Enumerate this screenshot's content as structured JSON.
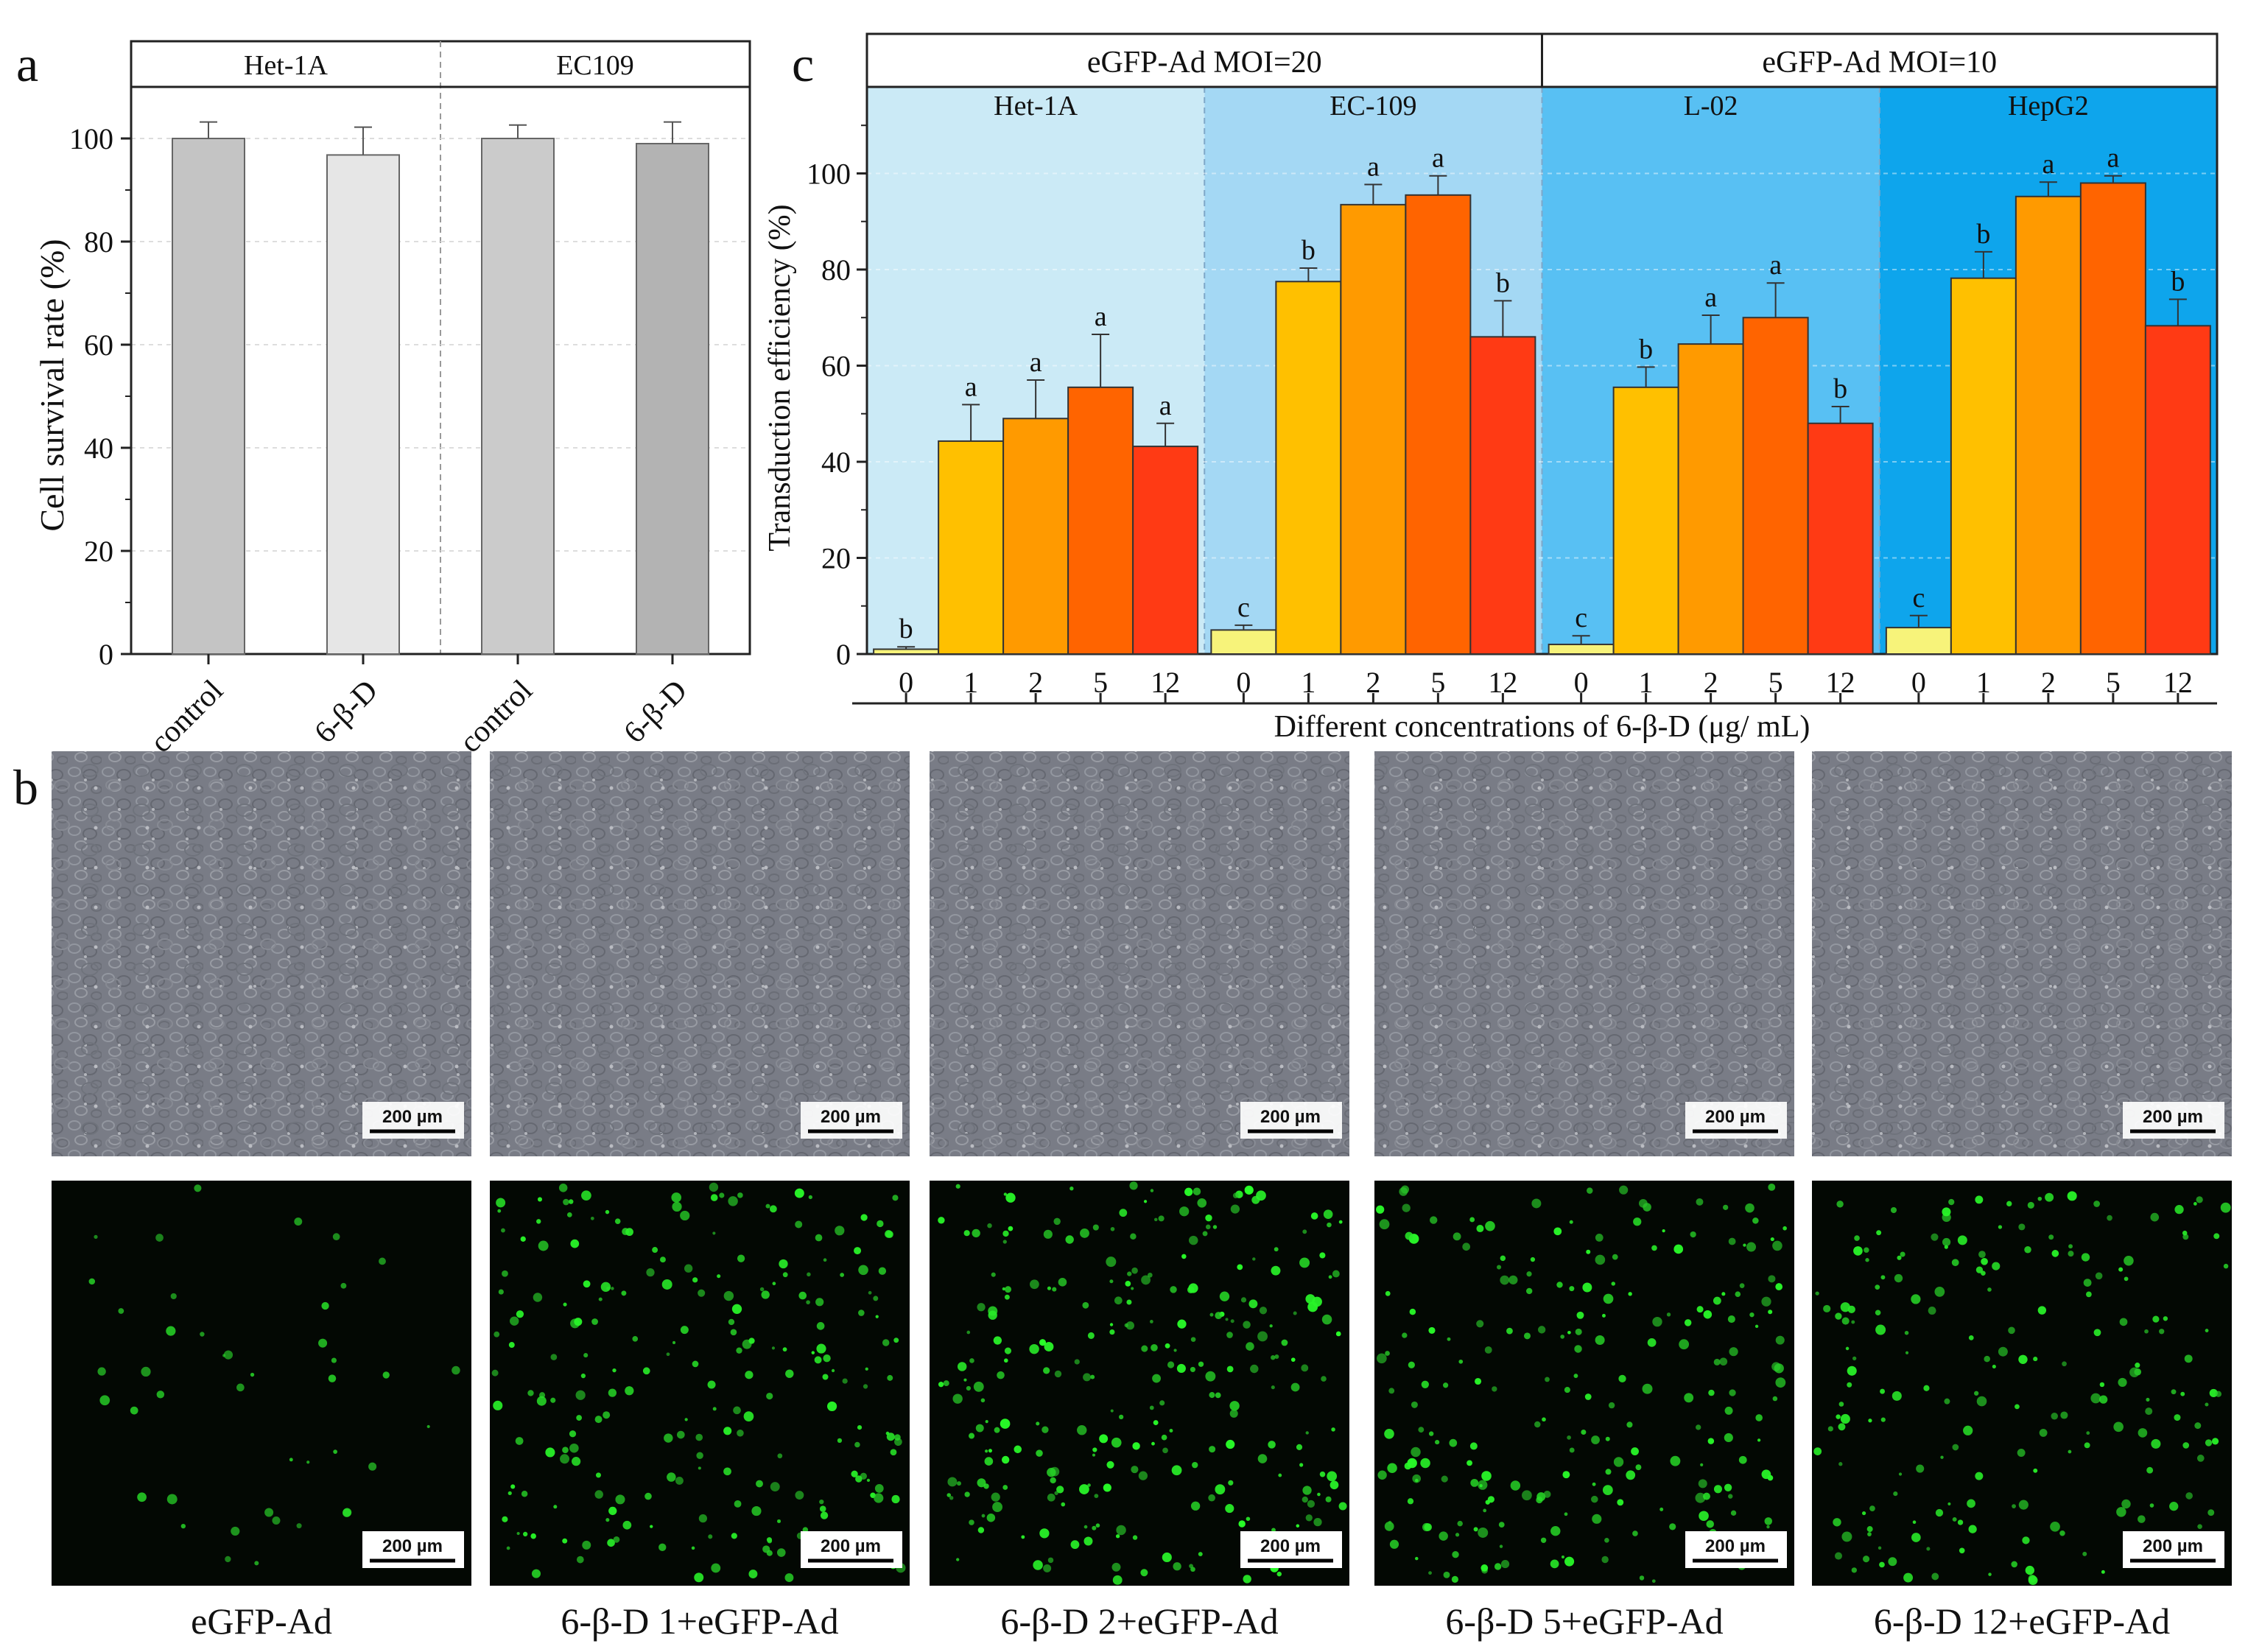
{
  "panel_labels": {
    "a": "a",
    "b": "b",
    "c": "c"
  },
  "chart_data": [
    {
      "id": "a",
      "type": "bar",
      "ylabel": "Cell survival rate  (%)",
      "ylim": [
        0,
        110
      ],
      "yticks": [
        0,
        20,
        40,
        60,
        80,
        100
      ],
      "grid": true,
      "groups": [
        "Het-1A",
        "EC109"
      ],
      "categories": [
        "control",
        "6-β-D",
        "control",
        "6-β-D"
      ],
      "group_index": [
        0,
        0,
        1,
        1
      ],
      "values": [
        100,
        96.8,
        100,
        99
      ],
      "errors": [
        3.2,
        5.4,
        2.6,
        4.2
      ],
      "colors": [
        "#c4c4c4",
        "#e6e6e6",
        "#cbcbcb",
        "#b3b3b3"
      ]
    },
    {
      "id": "c",
      "type": "bar",
      "ylabel": "Transduction efficiency (%)",
      "xlabel": "Different concentrations of 6-β-D (μg/ mL)",
      "ylim": [
        0,
        118
      ],
      "yticks": [
        0,
        20,
        40,
        60,
        80,
        100
      ],
      "moi_groups": [
        {
          "label": "eGFP-Ad MOI=20",
          "span": [
            0,
            1
          ]
        },
        {
          "label": "eGFP-Ad MOI=10",
          "span": [
            2,
            3
          ]
        }
      ],
      "cell_lines": [
        "Het-1A",
        "EC-109",
        "L-02",
        "HepG2"
      ],
      "background_colors": [
        "#cbeaf6",
        "#a4d8f4",
        "#58c0f3",
        "#0ea5ec"
      ],
      "concentrations": [
        "0",
        "1",
        "2",
        "5",
        "12"
      ],
      "bar_colors": [
        "#f7f37a",
        "#ffc000",
        "#ff9a00",
        "#ff6400",
        "#ff3a14"
      ],
      "series": [
        {
          "name": "Het-1A",
          "values": [
            1,
            44.3,
            49,
            55.5,
            43.2
          ],
          "errors": [
            0.5,
            7.6,
            8,
            11,
            4.8
          ],
          "letters": [
            "b",
            "a",
            "a",
            "a",
            "a"
          ]
        },
        {
          "name": "EC-109",
          "values": [
            5,
            77.5,
            93.5,
            95.5,
            66
          ],
          "errors": [
            1,
            2.8,
            4.2,
            4,
            7.5
          ],
          "letters": [
            "c",
            "b",
            "a",
            "a",
            "b"
          ]
        },
        {
          "name": "L-02",
          "values": [
            2,
            55.5,
            64.5,
            70,
            48
          ],
          "errors": [
            1.8,
            4.2,
            6,
            7.2,
            3.5
          ],
          "letters": [
            "c",
            "b",
            "a",
            "a",
            "b"
          ]
        },
        {
          "name": "HepG2",
          "values": [
            5.5,
            78.2,
            95.2,
            98,
            68.3
          ],
          "errors": [
            2.5,
            5.5,
            3,
            1.5,
            5.5
          ],
          "letters": [
            "c",
            "b",
            "a",
            "a",
            "b"
          ]
        }
      ]
    }
  ],
  "micrographs": {
    "scale_bar": "200 µm",
    "captions": [
      "eGFP-Ad",
      "6-β-D 1+eGFP-Ad",
      "6-β-D 2+eGFP-Ad",
      "6-β-D 5+eGFP-Ad",
      "6-β-D 12+eGFP-Ad"
    ],
    "fluorescence_intensity": [
      0.12,
      0.8,
      1.0,
      0.85,
      0.7
    ]
  }
}
